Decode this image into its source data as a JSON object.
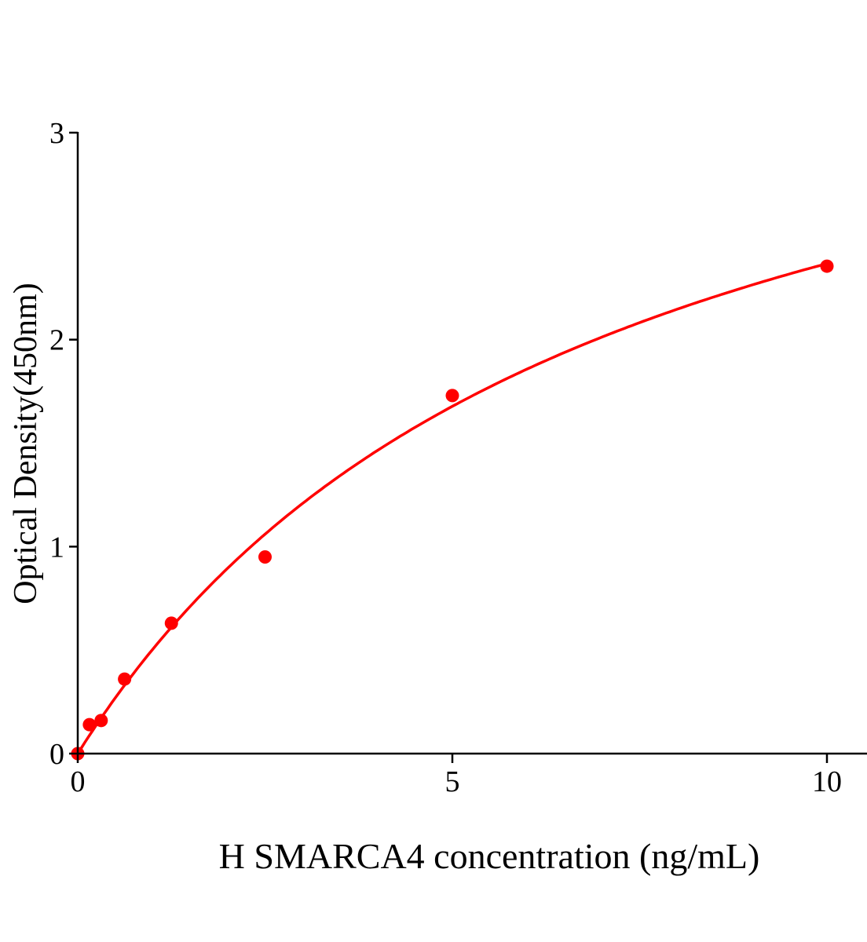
{
  "chart_data": {
    "type": "scatter",
    "title": "",
    "xlabel": "H SMARCA4 concentration (ng/mL)",
    "ylabel": "Optical Density(450nm)",
    "xlim": [
      0,
      10.5
    ],
    "ylim": [
      0,
      3
    ],
    "xticks": [
      "0",
      "5",
      "10"
    ],
    "yticks": [
      "0",
      "1",
      "2",
      "3"
    ],
    "grid": false,
    "legend": "none",
    "series": [
      {
        "x": [
          0,
          0.156,
          0.3125,
          0.625,
          1.25,
          2.5,
          5,
          10
        ],
        "y": [
          0.0,
          0.14,
          0.16,
          0.36,
          0.63,
          0.95,
          1.73,
          2.355
        ],
        "color": "#ff0000",
        "fit_curve": true
      }
    ]
  }
}
